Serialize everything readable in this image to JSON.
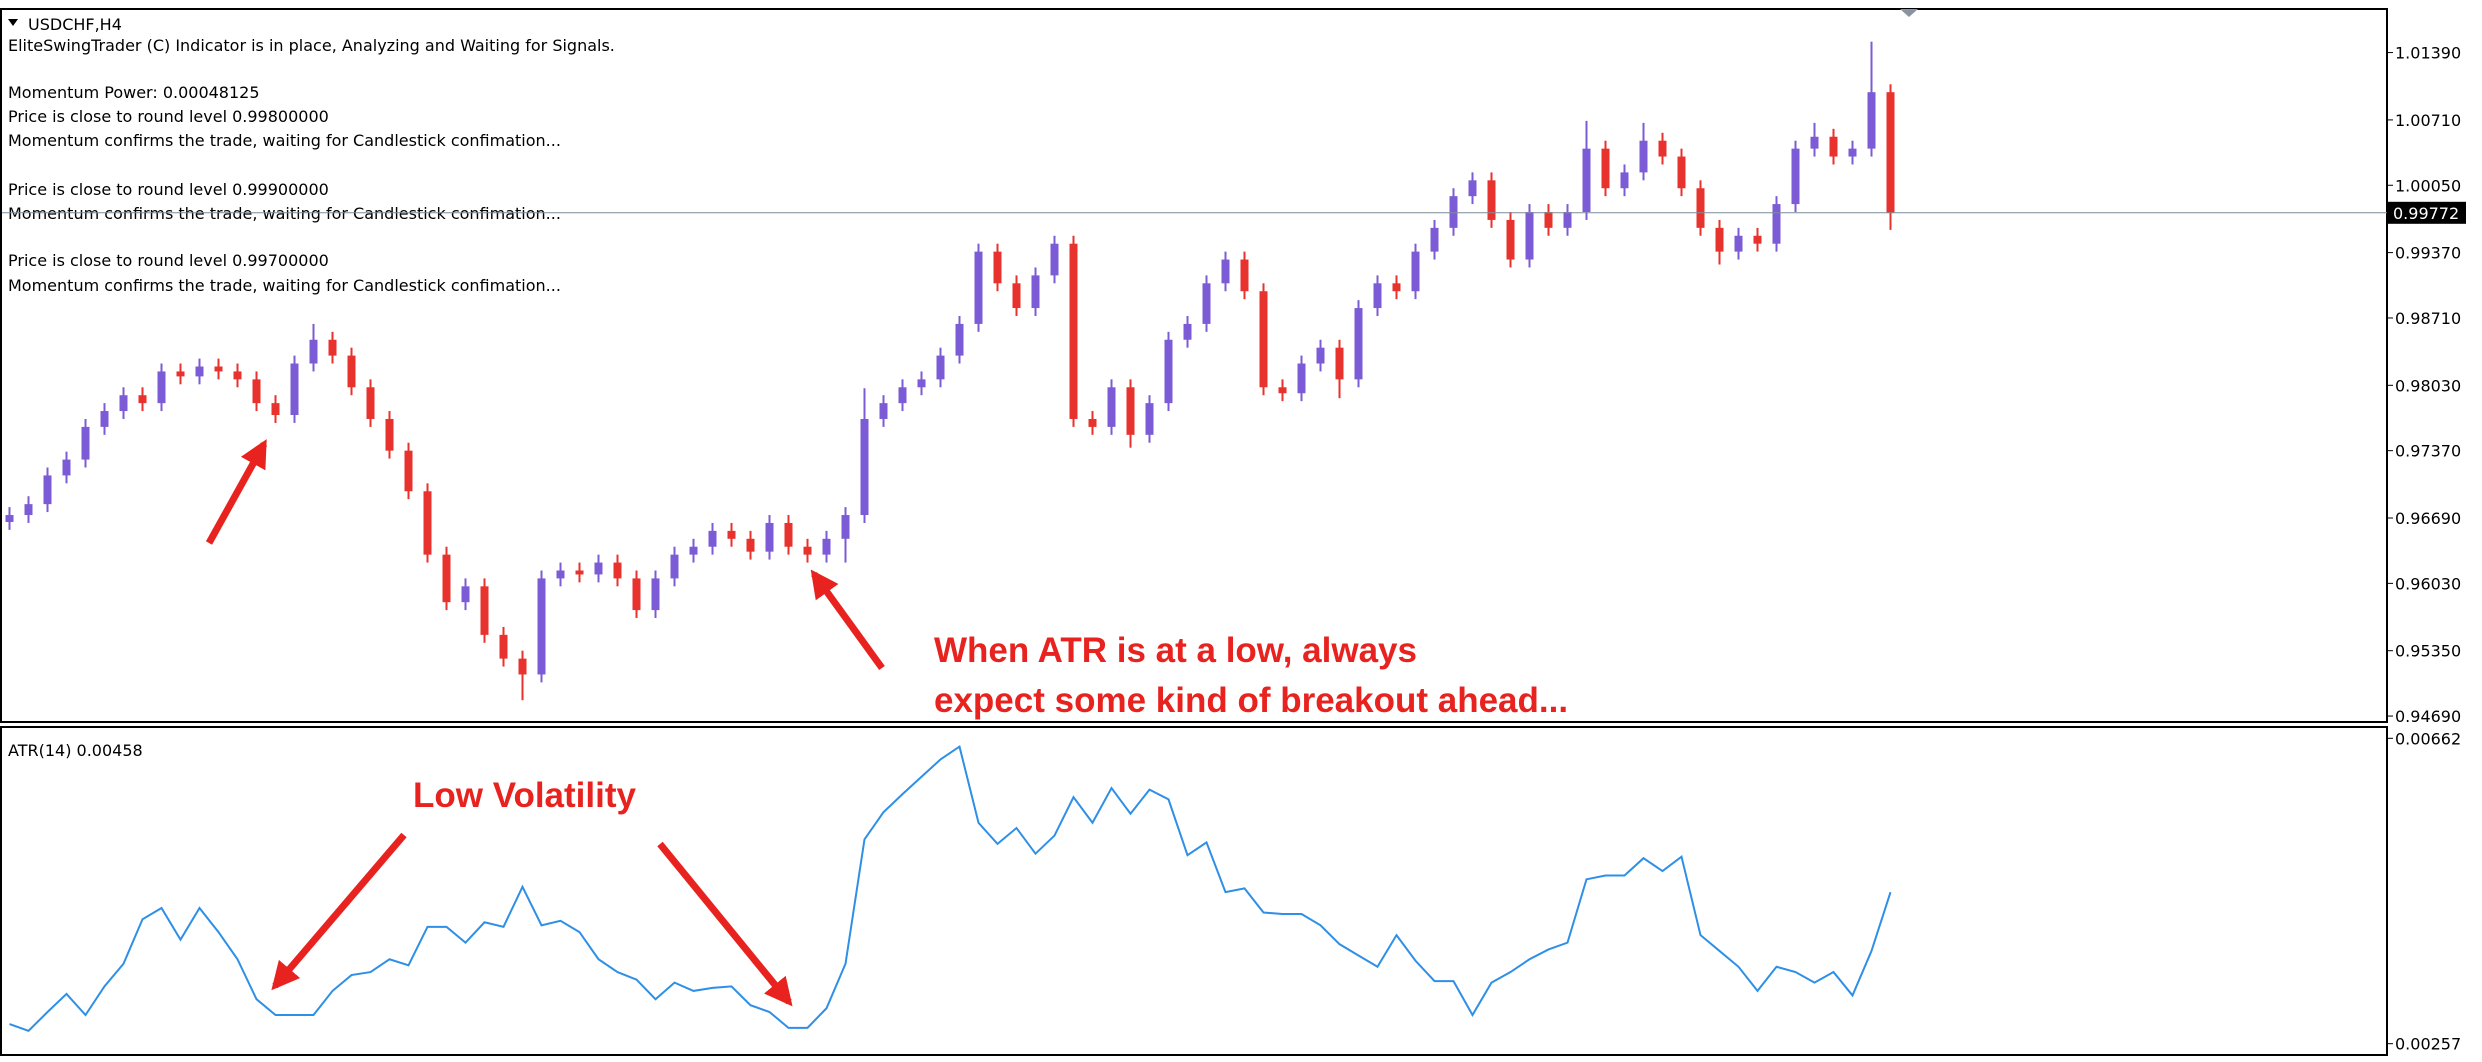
{
  "chart_data": [
    {
      "type": "candlestick",
      "title": "USDCHF,H4",
      "info_lines": [
        "EliteSwingTrader (C) Indicator is in place, Analyzing and Waiting for Signals.",
        "Momentum Power: 0.00048125",
        "Price is close to round level 0.99800000",
        "Momentum confirms the trade, waiting for Candlestick confimation...",
        "Price is close to round level 0.99900000",
        "Momentum confirms the trade, waiting for Candlestick confimation...",
        "Price is close to round level 0.99700000",
        "Momentum confirms the trade, waiting for Candlestick confimation..."
      ],
      "notes": [
        "When ATR is at a low, always",
        "expect some kind of breakout ahead..."
      ],
      "up_color": "#7b5cd6",
      "down_color": "#e8322d",
      "open": [
        0.9665,
        0.9672,
        0.9683,
        0.9712,
        0.9728,
        0.9761,
        0.9777,
        0.9793,
        0.9785,
        0.9817,
        0.9812,
        0.9822,
        0.9817,
        0.9809,
        0.9785,
        0.9773,
        0.9825,
        0.9849,
        0.9833,
        0.9801,
        0.9769,
        0.9737,
        0.9696,
        0.9632,
        0.9584,
        0.96,
        0.9551,
        0.9527,
        0.9511,
        0.9608,
        0.9616,
        0.9612,
        0.9624,
        0.9608,
        0.9576,
        0.9608,
        0.9632,
        0.964,
        0.9656,
        0.9648,
        0.9635,
        0.9664,
        0.964,
        0.9632,
        0.9648,
        0.9672,
        0.9769,
        0.9785,
        0.9801,
        0.9809,
        0.9833,
        0.9865,
        0.9938,
        0.9906,
        0.9881,
        0.9914,
        0.9946,
        0.9769,
        0.9761,
        0.9801,
        0.9753,
        0.9785,
        0.9849,
        0.9865,
        0.9906,
        0.993,
        0.9898,
        0.9801,
        0.9795,
        0.9825,
        0.9841,
        0.9809,
        0.9881,
        0.9906,
        0.9898,
        0.9938,
        0.9962,
        0.9994,
        1.001,
        0.997,
        0.993,
        0.9978,
        0.9962,
        0.9978,
        1.0042,
        1.0002,
        1.0018,
        1.005,
        1.0034,
        1.0002,
        0.9962,
        0.9938,
        0.9954,
        0.9946,
        0.9986,
        1.0042,
        1.0054,
        1.0034,
        1.0042,
        1.0099
      ],
      "high": [
        0.968,
        0.9691,
        0.972,
        0.9736,
        0.9769,
        0.9785,
        0.9801,
        0.9801,
        0.9825,
        0.9825,
        0.983,
        0.983,
        0.9825,
        0.9817,
        0.9793,
        0.9833,
        0.9865,
        0.9857,
        0.9841,
        0.9809,
        0.9777,
        0.9745,
        0.9704,
        0.964,
        0.9608,
        0.9608,
        0.9559,
        0.9535,
        0.9616,
        0.9624,
        0.9624,
        0.9632,
        0.9632,
        0.9616,
        0.9616,
        0.964,
        0.9648,
        0.9664,
        0.9664,
        0.9656,
        0.9672,
        0.9672,
        0.9648,
        0.9656,
        0.968,
        0.98,
        0.9793,
        0.9809,
        0.9817,
        0.9841,
        0.9873,
        0.9946,
        0.9946,
        0.9914,
        0.9922,
        0.9954,
        0.9954,
        0.9777,
        0.9809,
        0.9809,
        0.9793,
        0.9857,
        0.9873,
        0.9914,
        0.9938,
        0.9938,
        0.9906,
        0.9809,
        0.9833,
        0.9849,
        0.9849,
        0.9889,
        0.9914,
        0.9914,
        0.9946,
        0.997,
        1.0002,
        1.0018,
        1.0018,
        0.9978,
        0.9986,
        0.9986,
        0.9986,
        1.007,
        1.005,
        1.0026,
        1.0068,
        1.0058,
        1.0042,
        1.001,
        0.997,
        0.9962,
        0.9962,
        0.9994,
        1.005,
        1.0068,
        1.0062,
        1.005,
        1.015,
        1.0107
      ],
      "low": [
        0.9657,
        0.9664,
        0.9675,
        0.9704,
        0.972,
        0.9753,
        0.9769,
        0.9777,
        0.9777,
        0.9804,
        0.9804,
        0.9809,
        0.9801,
        0.9777,
        0.9765,
        0.9765,
        0.9817,
        0.9825,
        0.9793,
        0.9761,
        0.9729,
        0.9688,
        0.9624,
        0.9576,
        0.9576,
        0.9543,
        0.9519,
        0.9485,
        0.9503,
        0.96,
        0.9604,
        0.9604,
        0.96,
        0.9568,
        0.9568,
        0.96,
        0.9624,
        0.9632,
        0.964,
        0.9627,
        0.9627,
        0.9632,
        0.9624,
        0.9624,
        0.9624,
        0.9664,
        0.9761,
        0.9777,
        0.9793,
        0.9801,
        0.9825,
        0.9857,
        0.9898,
        0.9873,
        0.9873,
        0.9906,
        0.9761,
        0.9753,
        0.9753,
        0.974,
        0.9745,
        0.9777,
        0.9841,
        0.9857,
        0.9898,
        0.989,
        0.9793,
        0.9787,
        0.9787,
        0.9817,
        0.979,
        0.9801,
        0.9873,
        0.989,
        0.989,
        0.993,
        0.9954,
        0.9986,
        0.9962,
        0.9922,
        0.9922,
        0.9954,
        0.9954,
        0.997,
        0.9994,
        0.9994,
        1.001,
        1.0026,
        0.9994,
        0.9954,
        0.9925,
        0.993,
        0.9938,
        0.9938,
        0.9978,
        1.0034,
        1.0026,
        1.0026,
        1.0034,
        0.996
      ],
      "close": [
        0.9672,
        0.9683,
        0.9712,
        0.9728,
        0.9761,
        0.9777,
        0.9793,
        0.9785,
        0.9817,
        0.9812,
        0.9822,
        0.9817,
        0.9809,
        0.9785,
        0.9773,
        0.9825,
        0.9849,
        0.9833,
        0.9801,
        0.9769,
        0.9737,
        0.9696,
        0.9632,
        0.9584,
        0.96,
        0.9551,
        0.9527,
        0.9511,
        0.9608,
        0.9616,
        0.9612,
        0.9624,
        0.9608,
        0.9576,
        0.9608,
        0.9632,
        0.964,
        0.9656,
        0.9648,
        0.9635,
        0.9664,
        0.964,
        0.9632,
        0.9648,
        0.9672,
        0.9769,
        0.9785,
        0.9801,
        0.9809,
        0.9833,
        0.9865,
        0.9938,
        0.9906,
        0.9881,
        0.9914,
        0.9946,
        0.9769,
        0.9761,
        0.9801,
        0.9753,
        0.9785,
        0.9849,
        0.9865,
        0.9906,
        0.993,
        0.9898,
        0.9801,
        0.9795,
        0.9825,
        0.9841,
        0.9809,
        0.9881,
        0.9906,
        0.9898,
        0.9938,
        0.9962,
        0.9994,
        1.001,
        0.997,
        0.993,
        0.9978,
        0.9962,
        0.9978,
        1.0042,
        1.0002,
        1.0018,
        1.005,
        1.0034,
        1.0002,
        0.9962,
        0.9938,
        0.9954,
        0.9946,
        0.9986,
        1.0042,
        1.0054,
        1.0034,
        1.0042,
        1.0099,
        0.9977
      ],
      "last_price": 0.99772,
      "ylim": [
        0.9463,
        1.0183
      ],
      "yticks": [
        {
          "value": 1.0139,
          "label": "1.01390"
        },
        {
          "value": 1.0071,
          "label": "1.00710"
        },
        {
          "value": 1.0005,
          "label": "1.00050"
        },
        {
          "value": 0.9937,
          "label": "0.99370"
        },
        {
          "value": 0.9871,
          "label": "0.98710"
        },
        {
          "value": 0.9803,
          "label": "0.98030"
        },
        {
          "value": 0.9737,
          "label": "0.97370"
        },
        {
          "value": 0.9669,
          "label": "0.96690"
        },
        {
          "value": 0.9603,
          "label": "0.96030"
        },
        {
          "value": 0.9535,
          "label": "0.95350"
        },
        {
          "value": 0.9469,
          "label": "0.94690"
        }
      ]
    },
    {
      "type": "line",
      "title": "ATR(14) 0.00458",
      "notes": [
        "Low Volatility"
      ],
      "color": "#2e8fe6",
      "values": [
        0.00283,
        0.00274,
        0.00299,
        0.00323,
        0.00295,
        0.00333,
        0.00363,
        0.00422,
        0.00437,
        0.00395,
        0.00437,
        0.00405,
        0.00369,
        0.00316,
        0.00295,
        0.00295,
        0.00295,
        0.00327,
        0.00348,
        0.00352,
        0.00369,
        0.00361,
        0.00412,
        0.00412,
        0.00391,
        0.00418,
        0.00412,
        0.00465,
        0.00414,
        0.0042,
        0.00405,
        0.00369,
        0.00352,
        0.00342,
        0.00316,
        0.00338,
        0.00327,
        0.00331,
        0.00333,
        0.00308,
        0.00299,
        0.00278,
        0.00278,
        0.00304,
        0.00363,
        0.00528,
        0.00564,
        0.00588,
        0.00611,
        0.00634,
        0.00651,
        0.0055,
        0.00522,
        0.00543,
        0.00509,
        0.00533,
        0.00584,
        0.0055,
        0.00596,
        0.00562,
        0.00594,
        0.00581,
        0.00507,
        0.00524,
        0.00458,
        0.00463,
        0.00431,
        0.00429,
        0.00429,
        0.00414,
        0.00389,
        0.00374,
        0.00359,
        0.00401,
        0.00367,
        0.0034,
        0.0034,
        0.00295,
        0.00338,
        0.00352,
        0.00369,
        0.00382,
        0.00391,
        0.00475,
        0.0048,
        0.0048,
        0.00503,
        0.00486,
        0.00505,
        0.00401,
        0.0038,
        0.00359,
        0.00327,
        0.00359,
        0.00352,
        0.00338,
        0.00352,
        0.00321,
        0.0038,
        0.00458
      ],
      "ylim": [
        0.00242,
        0.00677
      ],
      "yticks": [
        0.00662,
        0.00257
      ]
    }
  ]
}
